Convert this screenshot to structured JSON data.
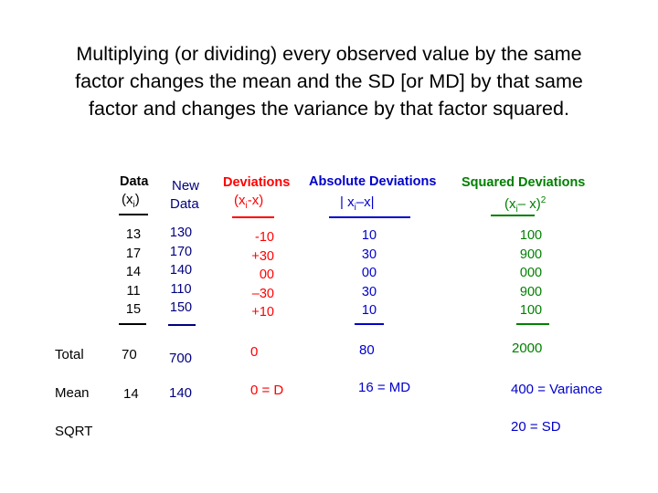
{
  "headline": [
    "Multiplying (or dividing) every observed value by the same",
    "factor changes the mean and the SD [or MD] by that same",
    "factor and changes the variance by that factor squared."
  ],
  "headers": {
    "data": "Data",
    "data_sub": "(x",
    "data_sub_i": "i",
    "data_sub_close": ")",
    "new_data_1": "New",
    "new_data_2": "Data",
    "deviations": "Deviations",
    "deviations_formula": "(x",
    "deviations_formula_i": "i",
    "deviations_formula_rest": "-x)",
    "abs_deviations": "Absolute Deviations",
    "abs_formula": "| x",
    "abs_formula_i": "i",
    "abs_formula_rest": "–x|",
    "sq_deviations": "Squared Deviations",
    "sq_formula": "(x",
    "sq_formula_i": "i",
    "sq_formula_rest": "– x)",
    "sq_formula_sup": "2"
  },
  "columns": {
    "data": [
      "13",
      "17",
      "14",
      "11",
      "15"
    ],
    "new_data": [
      "130",
      "170",
      "140",
      "110",
      "150"
    ],
    "deviations": [
      "-10",
      "+30",
      "00",
      "–30",
      "+10"
    ],
    "abs_deviations": [
      "10",
      "30",
      "00",
      "30",
      "10"
    ],
    "sq_deviations": [
      "100",
      "900",
      "000",
      "900",
      "100"
    ]
  },
  "summary": {
    "total_label": "Total",
    "total_data": "70",
    "total_new": "700",
    "total_dev": "0",
    "total_abs": "80",
    "total_sq": "2000",
    "mean_label": "Mean",
    "mean_data": "14",
    "mean_new": "140",
    "mean_dev": "0 = D",
    "mean_abs": "16 = MD",
    "mean_sq": "400 = Variance",
    "sqrt_label": "SQRT",
    "sqrt_sq": "20 = SD"
  },
  "colors": {
    "data": "#000000",
    "new_data": "#000080",
    "deviations": "#ff0000",
    "abs_deviations": "#0000cc",
    "sq_deviations": "#008000"
  }
}
